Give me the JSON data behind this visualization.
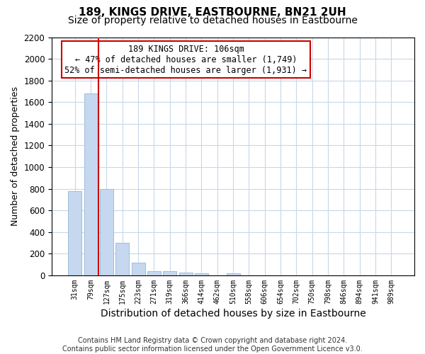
{
  "title": "189, KINGS DRIVE, EASTBOURNE, BN21 2UH",
  "subtitle": "Size of property relative to detached houses in Eastbourne",
  "xlabel": "Distribution of detached houses by size in Eastbourne",
  "ylabel": "Number of detached properties",
  "categories": [
    "31sqm",
    "79sqm",
    "127sqm",
    "175sqm",
    "223sqm",
    "271sqm",
    "319sqm",
    "366sqm",
    "414sqm",
    "462sqm",
    "510sqm",
    "558sqm",
    "606sqm",
    "654sqm",
    "702sqm",
    "750sqm",
    "798sqm",
    "846sqm",
    "894sqm",
    "941sqm",
    "989sqm"
  ],
  "values": [
    775,
    1680,
    795,
    300,
    115,
    38,
    38,
    28,
    20,
    0,
    18,
    0,
    0,
    0,
    0,
    0,
    0,
    0,
    0,
    0,
    0
  ],
  "bar_color": "#c5d8f0",
  "bar_edge_color": "#a0bcd8",
  "vline_color": "#cc0000",
  "vline_x": 1.5,
  "annotation_line1": "189 KINGS DRIVE: 106sqm",
  "annotation_line2": "← 47% of detached houses are smaller (1,749)",
  "annotation_line3": "52% of semi-detached houses are larger (1,931) →",
  "annotation_box_color": "#ffffff",
  "annotation_box_edge": "#cc0000",
  "ylim": [
    0,
    2200
  ],
  "yticks": [
    0,
    200,
    400,
    600,
    800,
    1000,
    1200,
    1400,
    1600,
    1800,
    2000,
    2200
  ],
  "footer": "Contains HM Land Registry data © Crown copyright and database right 2024.\nContains public sector information licensed under the Open Government Licence v3.0.",
  "title_fontsize": 11,
  "subtitle_fontsize": 10,
  "xlabel_fontsize": 10,
  "ylabel_fontsize": 9,
  "annotation_fontsize": 8.5,
  "footer_fontsize": 7,
  "background_color": "#ffffff",
  "grid_color": "#c8d8e8"
}
